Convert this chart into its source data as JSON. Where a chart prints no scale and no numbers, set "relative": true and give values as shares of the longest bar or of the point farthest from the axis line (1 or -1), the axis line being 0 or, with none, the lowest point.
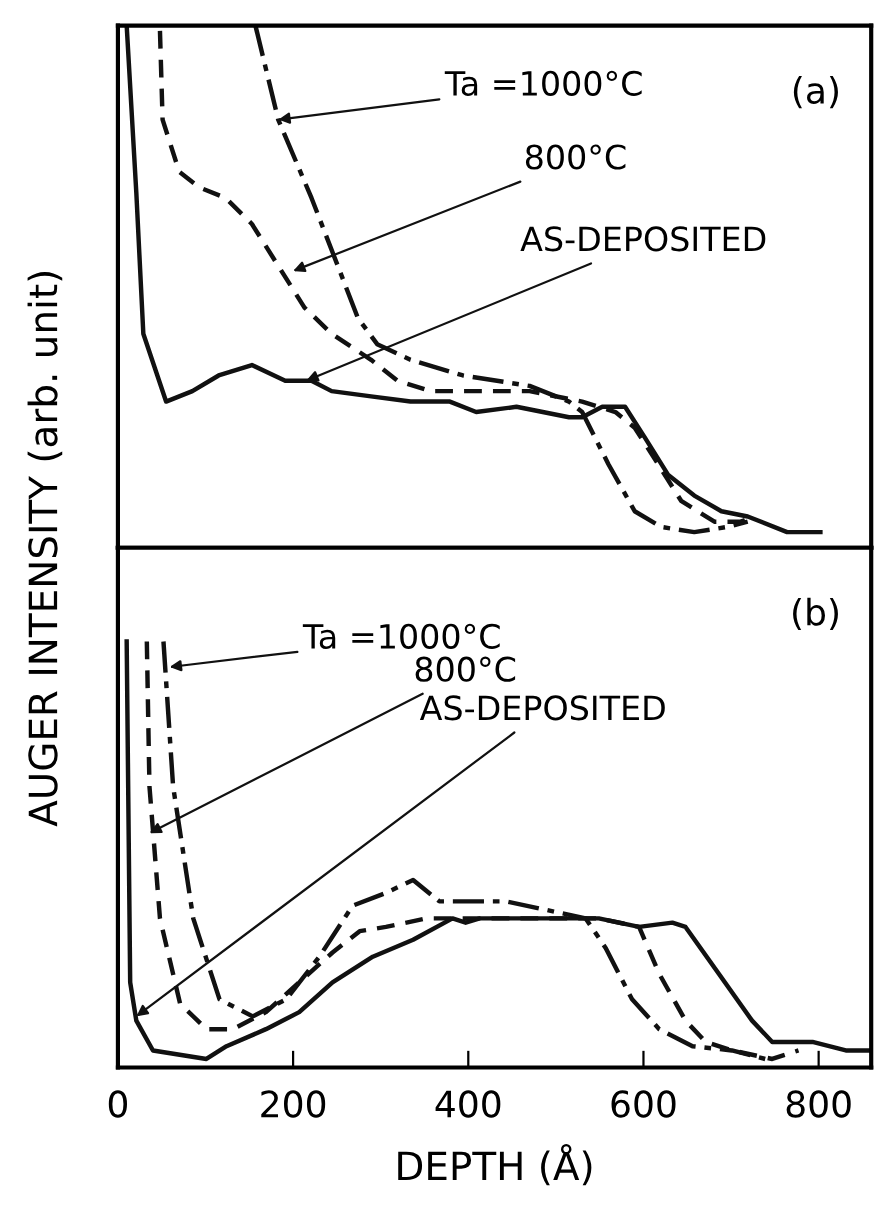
{
  "chart_data": [
    {
      "type": "line",
      "relative": true,
      "ylabel": "AUGER INTENSITY (arb. unit)",
      "xlim": [
        0,
        860
      ],
      "tick_labels": false,
      "annotations": [
        "(a)",
        {
          "text": "Ta =1000°C",
          "x": 183,
          "y": 0.82
        },
        {
          "text": "800°C",
          "x": 200,
          "y": 0.53
        },
        {
          "text": "AS-DEPOSITED",
          "x": 215,
          "y": 0.32
        }
      ],
      "series": [
        {
          "color": "#111111",
          "line_style": "solid",
          "x": [
            10,
            21,
            29,
            55,
            85,
            115,
            153,
            191,
            221,
            244,
            289,
            334,
            379,
            409,
            455,
            515,
            530,
            553,
            579,
            602,
            628,
            658,
            689,
            719,
            764,
            802
          ],
          "values": [
            1.0,
            0.68,
            0.41,
            0.28,
            0.3,
            0.33,
            0.35,
            0.32,
            0.32,
            0.3,
            0.29,
            0.28,
            0.28,
            0.26,
            0.27,
            0.25,
            0.25,
            0.27,
            0.27,
            0.21,
            0.14,
            0.1,
            0.07,
            0.06,
            0.03,
            0.03
          ]
        },
        {
          "color": "#111111",
          "line_style": "dashed",
          "x": [
            48,
            51,
            70,
            93,
            123,
            153,
            183,
            213,
            244,
            289,
            319,
            357,
            409,
            470,
            530,
            568,
            590,
            613,
            643,
            681,
            711,
            726
          ],
          "values": [
            0.99,
            0.82,
            0.72,
            0.69,
            0.67,
            0.62,
            0.54,
            0.46,
            0.41,
            0.36,
            0.32,
            0.3,
            0.3,
            0.3,
            0.28,
            0.26,
            0.23,
            0.17,
            0.09,
            0.05,
            0.05,
            0.06
          ]
        },
        {
          "color": "#111111",
          "line_style": "dashdot",
          "x": [
            157,
            183,
            221,
            251,
            274,
            296,
            334,
            394,
            470,
            515,
            530,
            560,
            590,
            620,
            658,
            696,
            719
          ],
          "values": [
            1.0,
            0.82,
            0.67,
            0.54,
            0.44,
            0.39,
            0.36,
            0.33,
            0.31,
            0.28,
            0.26,
            0.16,
            0.07,
            0.04,
            0.03,
            0.04,
            0.05
          ]
        }
      ]
    },
    {
      "type": "line",
      "relative": true,
      "xlabel": "DEPTH (Å)",
      "xlim": [
        0,
        860
      ],
      "xticks": [
        0,
        200,
        400,
        600,
        800
      ],
      "tick_labels": "x",
      "annotations": [
        "(b)",
        {
          "text": "Ta =1000°C",
          "x": 59,
          "y": 0.94
        },
        {
          "text": "800°C",
          "x": 36,
          "y": 0.55
        },
        {
          "text": "AS-DEPOSITED",
          "x": 21,
          "y": 0.12
        }
      ],
      "series": [
        {
          "color": "#111111",
          "line_style": "solid",
          "x": [
            10,
            14,
            21,
            40,
            101,
            124,
            169,
            207,
            245,
            291,
            337,
            382,
            397,
            413,
            473,
            549,
            595,
            633,
            648,
            686,
            724,
            747,
            793,
            831,
            859
          ],
          "values": [
            1.0,
            0.2,
            0.11,
            0.04,
            0.02,
            0.05,
            0.09,
            0.13,
            0.2,
            0.26,
            0.3,
            0.35,
            0.34,
            0.35,
            0.35,
            0.35,
            0.33,
            0.34,
            0.33,
            0.22,
            0.11,
            0.06,
            0.06,
            0.04,
            0.04
          ]
        },
        {
          "color": "#111111",
          "line_style": "dashed",
          "x": [
            33,
            36,
            48,
            71,
            101,
            131,
            169,
            207,
            245,
            276,
            306,
            352,
            413,
            473,
            549,
            595,
            618,
            648,
            671,
            701,
            747,
            777
          ],
          "values": [
            1.0,
            0.66,
            0.35,
            0.15,
            0.09,
            0.09,
            0.13,
            0.2,
            0.27,
            0.32,
            0.33,
            0.35,
            0.35,
            0.35,
            0.35,
            0.33,
            0.22,
            0.11,
            0.06,
            0.04,
            0.02,
            0.04
          ]
        },
        {
          "color": "#111111",
          "line_style": "dashdot",
          "x": [
            52,
            63,
            86,
            116,
            154,
            192,
            230,
            268,
            306,
            337,
            367,
            397,
            443,
            489,
            534,
            557,
            587,
            618,
            656,
            701,
            739
          ],
          "values": [
            1.0,
            0.66,
            0.35,
            0.16,
            0.12,
            0.16,
            0.26,
            0.38,
            0.41,
            0.44,
            0.39,
            0.39,
            0.39,
            0.37,
            0.35,
            0.28,
            0.16,
            0.09,
            0.05,
            0.04,
            0.02
          ]
        }
      ]
    }
  ]
}
